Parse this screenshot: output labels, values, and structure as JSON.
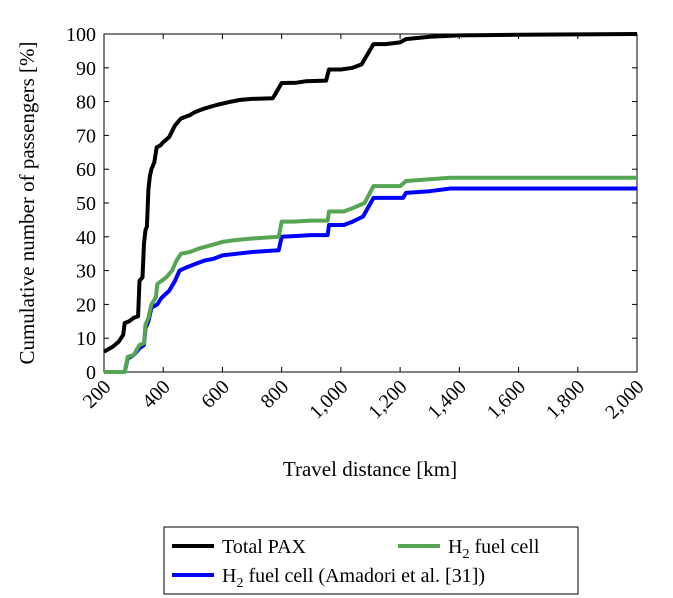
{
  "chart_data": {
    "type": "line",
    "xlabel": "Travel distance [km]",
    "ylabel": "Cumulative number of passengers [%]",
    "xlim": [
      200,
      2000
    ],
    "ylim": [
      0,
      100
    ],
    "xticks": [
      200,
      400,
      600,
      800,
      1000,
      1200,
      1400,
      1600,
      1800,
      2000
    ],
    "xtick_labels": [
      "200",
      "400",
      "600",
      "800",
      "1,000",
      "1,200",
      "1,400",
      "1,600",
      "1,800",
      "2,000"
    ],
    "yticks": [
      0,
      10,
      20,
      30,
      40,
      50,
      60,
      70,
      80,
      90,
      100
    ],
    "ytick_labels": [
      "0",
      "10",
      "20",
      "30",
      "40",
      "50",
      "60",
      "70",
      "80",
      "90",
      "100"
    ],
    "grid": false,
    "legend_position": "bottom-center",
    "series": [
      {
        "name": "Total PAX",
        "color": "#000000",
        "points": [
          [
            200,
            6
          ],
          [
            230,
            7.5
          ],
          [
            250,
            9
          ],
          [
            265,
            11
          ],
          [
            270,
            14.5
          ],
          [
            285,
            15
          ],
          [
            300,
            16
          ],
          [
            315,
            16.5
          ],
          [
            320,
            27
          ],
          [
            330,
            28
          ],
          [
            335,
            38
          ],
          [
            340,
            42
          ],
          [
            345,
            43
          ],
          [
            350,
            54
          ],
          [
            355,
            58
          ],
          [
            360,
            60
          ],
          [
            370,
            62
          ],
          [
            378,
            66.5
          ],
          [
            390,
            67
          ],
          [
            400,
            68
          ],
          [
            420,
            69.5
          ],
          [
            440,
            73
          ],
          [
            460,
            75
          ],
          [
            490,
            76
          ],
          [
            510,
            77
          ],
          [
            540,
            78
          ],
          [
            580,
            79
          ],
          [
            630,
            80
          ],
          [
            660,
            80.5
          ],
          [
            700,
            80.8
          ],
          [
            770,
            81
          ],
          [
            800,
            85.5
          ],
          [
            850,
            85.6
          ],
          [
            880,
            86
          ],
          [
            950,
            86.2
          ],
          [
            960,
            89.5
          ],
          [
            1000,
            89.5
          ],
          [
            1040,
            90
          ],
          [
            1070,
            91
          ],
          [
            1110,
            97
          ],
          [
            1150,
            97
          ],
          [
            1200,
            97.5
          ],
          [
            1220,
            98.5
          ],
          [
            1300,
            99.2
          ],
          [
            1400,
            99.6
          ],
          [
            1600,
            99.8
          ],
          [
            2000,
            100
          ]
        ]
      },
      {
        "name": "H2 fuel cell",
        "color": "#55a555",
        "points": [
          [
            200,
            0
          ],
          [
            270,
            0
          ],
          [
            280,
            4.5
          ],
          [
            300,
            5
          ],
          [
            320,
            8
          ],
          [
            335,
            8.5
          ],
          [
            340,
            14
          ],
          [
            350,
            16
          ],
          [
            360,
            20
          ],
          [
            375,
            22
          ],
          [
            380,
            26
          ],
          [
            395,
            27
          ],
          [
            410,
            28
          ],
          [
            430,
            30
          ],
          [
            445,
            33
          ],
          [
            460,
            35
          ],
          [
            490,
            35.5
          ],
          [
            520,
            36.5
          ],
          [
            560,
            37.5
          ],
          [
            600,
            38.5
          ],
          [
            640,
            39
          ],
          [
            700,
            39.5
          ],
          [
            790,
            40
          ],
          [
            800,
            44.5
          ],
          [
            840,
            44.5
          ],
          [
            900,
            44.8
          ],
          [
            955,
            44.8
          ],
          [
            960,
            47.5
          ],
          [
            1010,
            47.5
          ],
          [
            1040,
            48.5
          ],
          [
            1080,
            50
          ],
          [
            1110,
            55
          ],
          [
            1200,
            55
          ],
          [
            1220,
            56.5
          ],
          [
            1300,
            57
          ],
          [
            1370,
            57.5
          ],
          [
            2000,
            57.5
          ]
        ]
      },
      {
        "name": "H2 fuel cell (Amadori et al. [31])",
        "color": "#0000ff",
        "points": [
          [
            200,
            0
          ],
          [
            270,
            0
          ],
          [
            280,
            4
          ],
          [
            300,
            5
          ],
          [
            320,
            7
          ],
          [
            335,
            8
          ],
          [
            340,
            13
          ],
          [
            350,
            15
          ],
          [
            360,
            19
          ],
          [
            380,
            20
          ],
          [
            395,
            22
          ],
          [
            420,
            24
          ],
          [
            440,
            27
          ],
          [
            455,
            30
          ],
          [
            480,
            31
          ],
          [
            510,
            32
          ],
          [
            540,
            33
          ],
          [
            570,
            33.5
          ],
          [
            600,
            34.5
          ],
          [
            650,
            35
          ],
          [
            700,
            35.5
          ],
          [
            790,
            36
          ],
          [
            800,
            40
          ],
          [
            840,
            40.2
          ],
          [
            900,
            40.5
          ],
          [
            955,
            40.5
          ],
          [
            960,
            43.5
          ],
          [
            1010,
            43.5
          ],
          [
            1040,
            44.5
          ],
          [
            1075,
            46
          ],
          [
            1110,
            51.5
          ],
          [
            1210,
            51.5
          ],
          [
            1220,
            53
          ],
          [
            1300,
            53.5
          ],
          [
            1370,
            54.3
          ],
          [
            2000,
            54.3
          ]
        ]
      }
    ]
  },
  "legend": {
    "total_pax": "Total PAX",
    "h2_main": "H",
    "h2_sub": "2",
    "h2_rest": " fuel cell",
    "amadori_rest": " fuel cell (Amadori et al. [31])"
  }
}
